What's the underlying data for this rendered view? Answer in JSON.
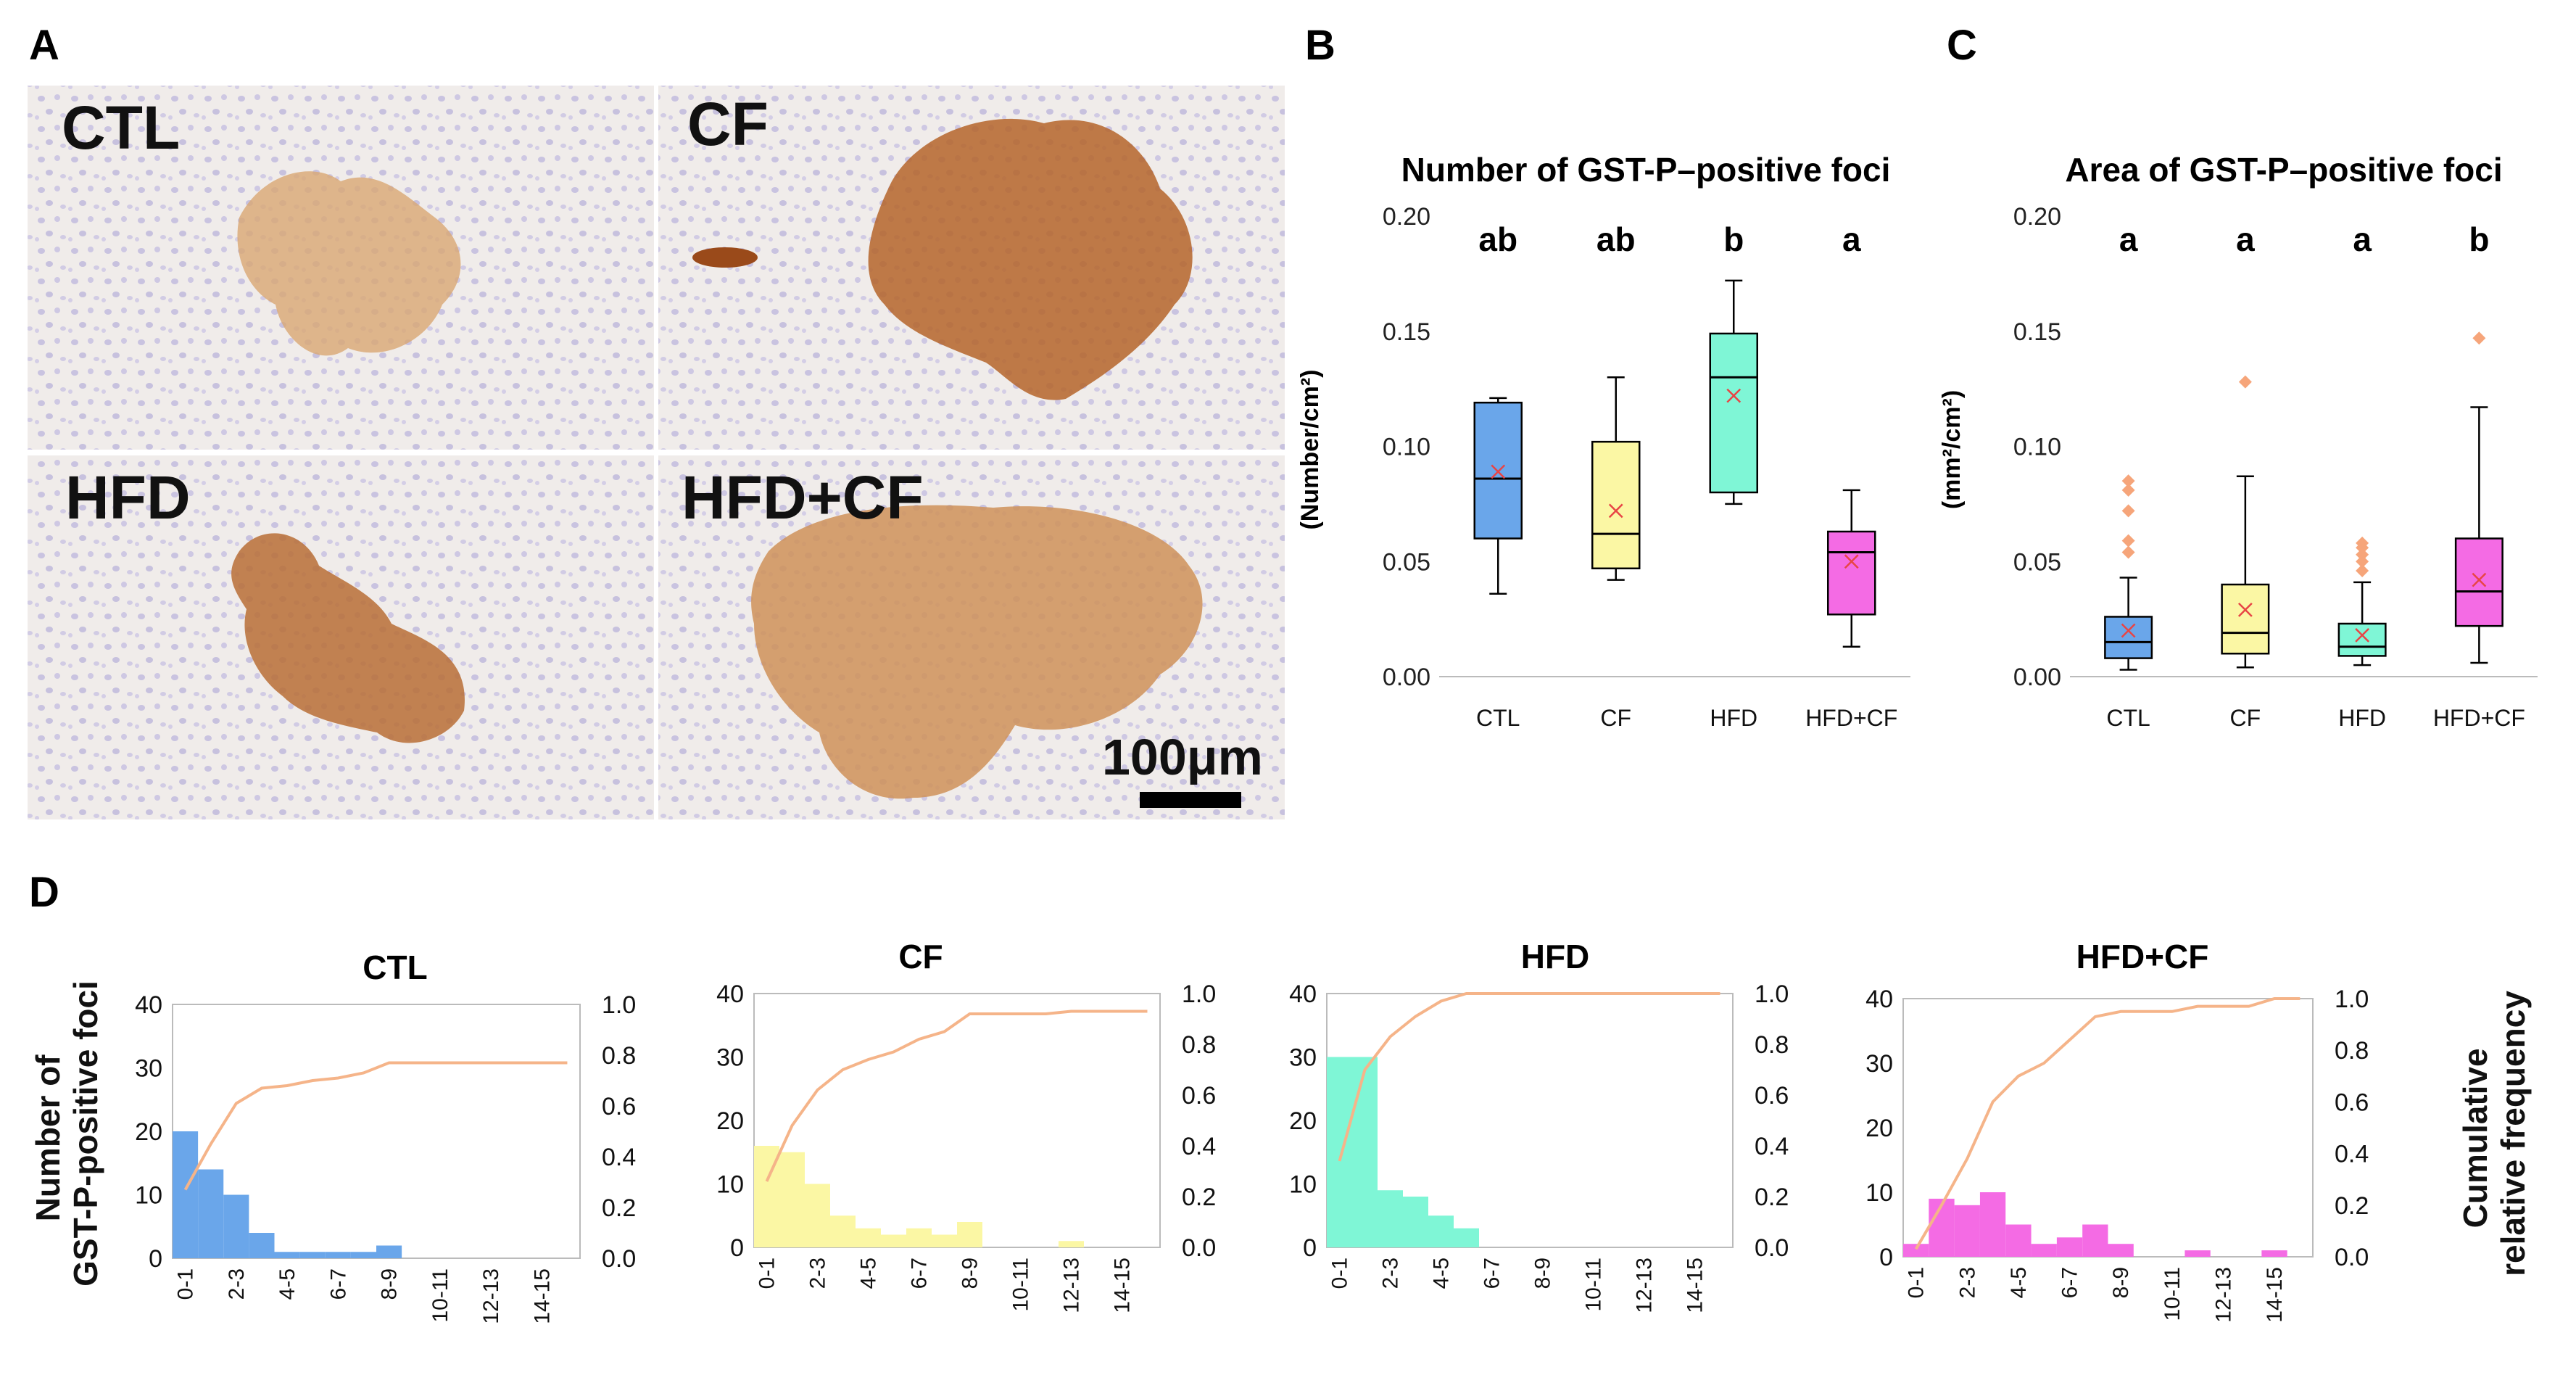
{
  "panels": {
    "A": "A",
    "B": "B",
    "C": "C",
    "D": "D"
  },
  "colors": {
    "CTL": "#6aa6ea",
    "CF": "#fbf7a4",
    "HFD": "#7ff6d6",
    "HFD+CF": "#f46be4",
    "cumulative": "#f5b489",
    "mean": "#e84545",
    "outlier": "#f6a57a"
  },
  "micrographs": [
    {
      "label": "CTL",
      "stain_color": "#d9a773",
      "icon": "liver-section-image"
    },
    {
      "label": "CF",
      "stain_color": "#b5652a",
      "icon": "liver-section-image"
    },
    {
      "label": "HFD",
      "stain_color": "#b86e36",
      "icon": "liver-section-image"
    },
    {
      "label": "HFD+CF",
      "stain_color": "#cf9259",
      "icon": "liver-section-image"
    }
  ],
  "scale_bar_label": "100μm",
  "chart_data": [
    {
      "type": "box",
      "panel": "B",
      "title": "Number of GST-P–positive foci",
      "ylabel": "(Number/cm²)",
      "ylim": [
        0,
        0.2
      ],
      "yticks": [
        "0.00",
        "0.05",
        "0.10",
        "0.15",
        "0.20"
      ],
      "categories": [
        "CTL",
        "CF",
        "HFD",
        "HFD+CF"
      ],
      "letters": [
        "ab",
        "ab",
        "b",
        "a"
      ],
      "boxes": [
        {
          "min": 0.036,
          "q1": 0.06,
          "median": 0.086,
          "q3": 0.119,
          "max": 0.121,
          "mean": 0.089,
          "outliers": []
        },
        {
          "min": 0.042,
          "q1": 0.047,
          "median": 0.062,
          "q3": 0.102,
          "max": 0.13,
          "mean": 0.072,
          "outliers": []
        },
        {
          "min": 0.075,
          "q1": 0.08,
          "median": 0.13,
          "q3": 0.149,
          "max": 0.172,
          "mean": 0.122,
          "outliers": []
        },
        {
          "min": 0.013,
          "q1": 0.027,
          "median": 0.054,
          "q3": 0.063,
          "max": 0.081,
          "mean": 0.05,
          "outliers": []
        }
      ]
    },
    {
      "type": "box",
      "panel": "C",
      "title": "Area of GST-P–positive foci",
      "ylabel": "(mm²/cm²)",
      "ylim": [
        0,
        0.2
      ],
      "yticks": [
        "0.00",
        "0.05",
        "0.10",
        "0.15",
        "0.20"
      ],
      "categories": [
        "CTL",
        "CF",
        "HFD",
        "HFD+CF"
      ],
      "letters": [
        "a",
        "a",
        "a",
        "b"
      ],
      "boxes": [
        {
          "min": 0.003,
          "q1": 0.008,
          "median": 0.015,
          "q3": 0.026,
          "max": 0.043,
          "mean": 0.02,
          "outliers": [
            0.054,
            0.059,
            0.072,
            0.081,
            0.085
          ]
        },
        {
          "min": 0.004,
          "q1": 0.01,
          "median": 0.019,
          "q3": 0.04,
          "max": 0.087,
          "mean": 0.029,
          "outliers": [
            0.128
          ]
        },
        {
          "min": 0.005,
          "q1": 0.009,
          "median": 0.013,
          "q3": 0.023,
          "max": 0.041,
          "mean": 0.018,
          "outliers": [
            0.046,
            0.05,
            0.053,
            0.056,
            0.058
          ]
        },
        {
          "min": 0.006,
          "q1": 0.022,
          "median": 0.037,
          "q3": 0.06,
          "max": 0.117,
          "mean": 0.042,
          "outliers": [
            0.147
          ]
        }
      ]
    },
    {
      "type": "bar+line",
      "panel": "D",
      "ylabel_left": "Number of GST-P-positive foci",
      "ylabel_right": "Cumulative relative frequency",
      "ylim_left": [
        0,
        40
      ],
      "ylim_right": [
        0,
        1.0
      ],
      "yticks_left": [
        "0",
        "10",
        "20",
        "30",
        "40"
      ],
      "yticks_right": [
        "0.0",
        "0.2",
        "0.4",
        "0.6",
        "0.8",
        "1.0"
      ],
      "categories": [
        "0-1",
        "1-2",
        "2-3",
        "3-4",
        "4-5",
        "5-6",
        "6-7",
        "7-8",
        "8-9",
        "9-10",
        "10-11",
        "11-12",
        "12-13",
        "13-14",
        "14-15",
        "15-16"
      ],
      "tick_labels": [
        "0-1",
        "2-3",
        "4-5",
        "6-7",
        "8-9",
        "10-11",
        "12-13",
        "14-15"
      ],
      "series": [
        {
          "name": "CTL",
          "counts": [
            20,
            14,
            10,
            4,
            1,
            1,
            1,
            1,
            2,
            0,
            0,
            0,
            0,
            0,
            0,
            0
          ],
          "cumulative": [
            0.27,
            0.45,
            0.61,
            0.67,
            0.68,
            0.7,
            0.71,
            0.73,
            0.77,
            0.77,
            0.77,
            0.77,
            0.77,
            0.77,
            0.77,
            0.77
          ]
        },
        {
          "name": "CF",
          "counts": [
            16,
            15,
            10,
            5,
            3,
            2,
            3,
            2,
            4,
            0,
            0,
            0,
            1,
            0,
            0,
            0
          ],
          "cumulative": [
            0.26,
            0.48,
            0.62,
            0.7,
            0.74,
            0.77,
            0.82,
            0.85,
            0.92,
            0.92,
            0.92,
            0.92,
            0.93,
            0.93,
            0.93,
            0.93
          ]
        },
        {
          "name": "HFD",
          "counts": [
            30,
            30,
            9,
            8,
            5,
            3,
            0,
            0,
            0,
            0,
            0,
            0,
            0,
            0,
            0,
            0
          ],
          "cumulative": [
            0.34,
            0.7,
            0.83,
            0.91,
            0.97,
            1.0,
            1.0,
            1.0,
            1.0,
            1.0,
            1.0,
            1.0,
            1.0,
            1.0,
            1.0,
            1.0
          ]
        },
        {
          "name": "HFD+CF",
          "counts": [
            2,
            9,
            8,
            10,
            5,
            2,
            3,
            5,
            2,
            0,
            0,
            1,
            0,
            0,
            1,
            0
          ],
          "cumulative": [
            0.03,
            0.2,
            0.38,
            0.6,
            0.7,
            0.75,
            0.84,
            0.93,
            0.95,
            0.95,
            0.95,
            0.97,
            0.97,
            0.97,
            1.0,
            1.0
          ]
        }
      ]
    }
  ]
}
